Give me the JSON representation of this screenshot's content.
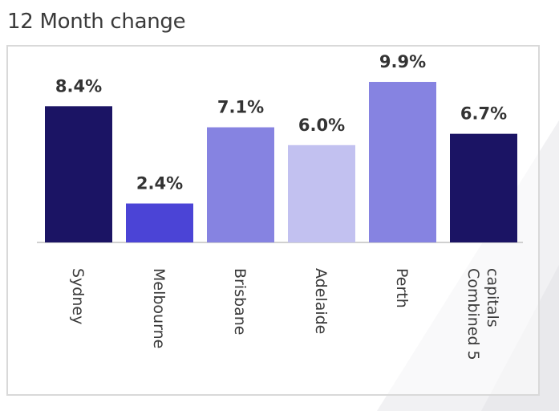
{
  "chart_data": {
    "type": "bar",
    "title": "12 Month change",
    "categories": [
      "Sydney",
      "Melbourne",
      "Brisbane",
      "Adelaide",
      "Perth",
      [
        "Combined 5",
        "capitals"
      ]
    ],
    "values": [
      8.4,
      2.4,
      7.1,
      6.0,
      9.9,
      6.7
    ],
    "value_labels": [
      "8.4%",
      "2.4%",
      "7.1%",
      "6.0%",
      "9.9%",
      "6.7%"
    ],
    "colors": [
      "#1b1464",
      "#4b44d6",
      "#8683e1",
      "#c2c1f0",
      "#8683e1",
      "#1b1464"
    ],
    "ylim": [
      0,
      10
    ],
    "grid": false,
    "legend": "none"
  }
}
